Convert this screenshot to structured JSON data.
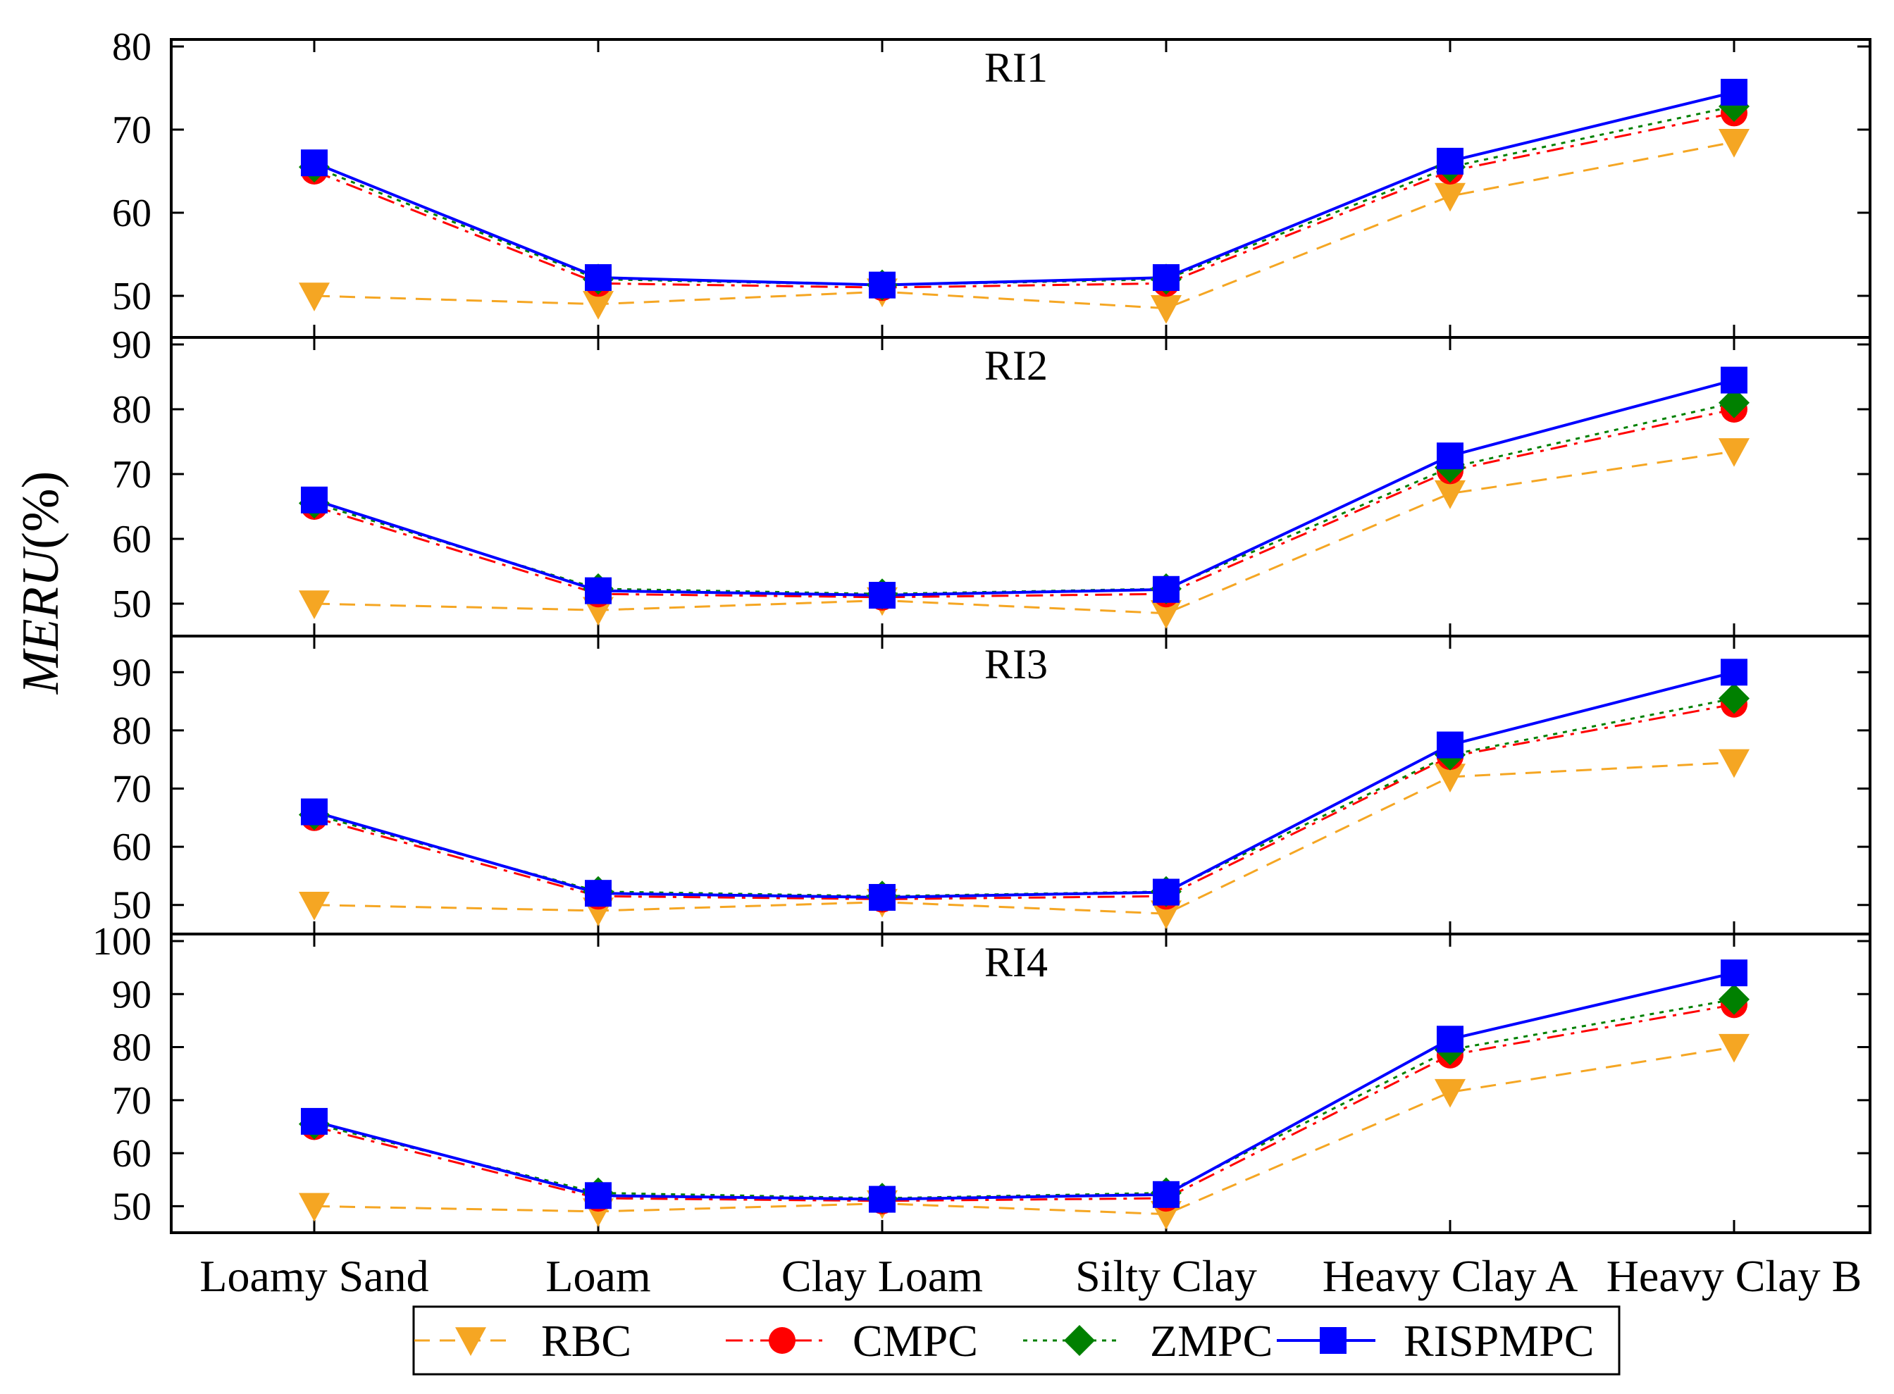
{
  "chart_data": {
    "type": "line",
    "ylabel_italic": "MERU",
    "ylabel_rest": "(%)",
    "categories": [
      "Loamy Sand",
      "Loam",
      "Clay Loam",
      "Silty Clay",
      "Heavy Clay A",
      "Heavy Clay B"
    ],
    "legend": [
      {
        "name": "RBC",
        "color": "#f5a623",
        "marker": "triangle-down",
        "dash": "dashed"
      },
      {
        "name": "CMPC",
        "color": "#ff0000",
        "marker": "circle",
        "dash": "dash-dot"
      },
      {
        "name": "ZMPC",
        "color": "#008000",
        "marker": "diamond",
        "dash": "dotted"
      },
      {
        "name": "RISPMPC",
        "color": "#0000ff",
        "marker": "square",
        "dash": "solid"
      }
    ],
    "panels": [
      {
        "title": "RI1",
        "ylim": [
          45,
          80
        ],
        "yticks": [
          50,
          60,
          70,
          80
        ],
        "series": [
          {
            "name": "RBC",
            "values": [
              50.0,
              49.0,
              50.5,
              48.5,
              62.0,
              68.5
            ]
          },
          {
            "name": "CMPC",
            "values": [
              65.0,
              51.5,
              51.0,
              51.5,
              65.0,
              72.0
            ]
          },
          {
            "name": "ZMPC",
            "values": [
              65.5,
              52.0,
              51.3,
              52.0,
              65.5,
              72.8
            ]
          },
          {
            "name": "RISPMPC",
            "values": [
              66.0,
              52.2,
              51.3,
              52.2,
              66.2,
              74.5
            ]
          }
        ]
      },
      {
        "title": "RI2",
        "ylim": [
          45,
          90
        ],
        "yticks": [
          50,
          60,
          70,
          80,
          90
        ],
        "series": [
          {
            "name": "RBC",
            "values": [
              50.0,
              49.0,
              50.5,
              48.5,
              67.0,
              73.5
            ]
          },
          {
            "name": "CMPC",
            "values": [
              65.0,
              51.5,
              51.0,
              51.5,
              70.5,
              80.0
            ]
          },
          {
            "name": "ZMPC",
            "values": [
              65.5,
              52.3,
              51.5,
              52.3,
              71.0,
              81.0
            ]
          },
          {
            "name": "RISPMPC",
            "values": [
              66.0,
              52.0,
              51.3,
              52.2,
              72.8,
              84.5
            ]
          }
        ]
      },
      {
        "title": "RI3",
        "ylim": [
          45,
          95
        ],
        "yticks": [
          50,
          60,
          70,
          80,
          90
        ],
        "series": [
          {
            "name": "RBC",
            "values": [
              50.0,
              49.0,
              50.5,
              48.5,
              72.0,
              74.5
            ]
          },
          {
            "name": "CMPC",
            "values": [
              65.0,
              51.5,
              51.0,
              51.5,
              75.5,
              84.5
            ]
          },
          {
            "name": "ZMPC",
            "values": [
              65.5,
              52.3,
              51.5,
              52.3,
              75.8,
              85.5
            ]
          },
          {
            "name": "RISPMPC",
            "values": [
              66.0,
              52.0,
              51.3,
              52.2,
              77.5,
              90.0
            ]
          }
        ]
      },
      {
        "title": "RI4",
        "ylim": [
          45,
          100
        ],
        "yticks": [
          50,
          60,
          70,
          80,
          90,
          100
        ],
        "series": [
          {
            "name": "RBC",
            "values": [
              50.0,
              49.0,
              50.5,
              48.5,
              71.5,
              80.0
            ]
          },
          {
            "name": "CMPC",
            "values": [
              65.0,
              51.5,
              51.0,
              51.5,
              78.5,
              88.0
            ]
          },
          {
            "name": "ZMPC",
            "values": [
              65.5,
              52.5,
              51.5,
              52.5,
              79.5,
              89.0
            ]
          },
          {
            "name": "RISPMPC",
            "values": [
              66.0,
              52.0,
              51.3,
              52.2,
              81.5,
              94.0
            ]
          }
        ]
      }
    ]
  }
}
